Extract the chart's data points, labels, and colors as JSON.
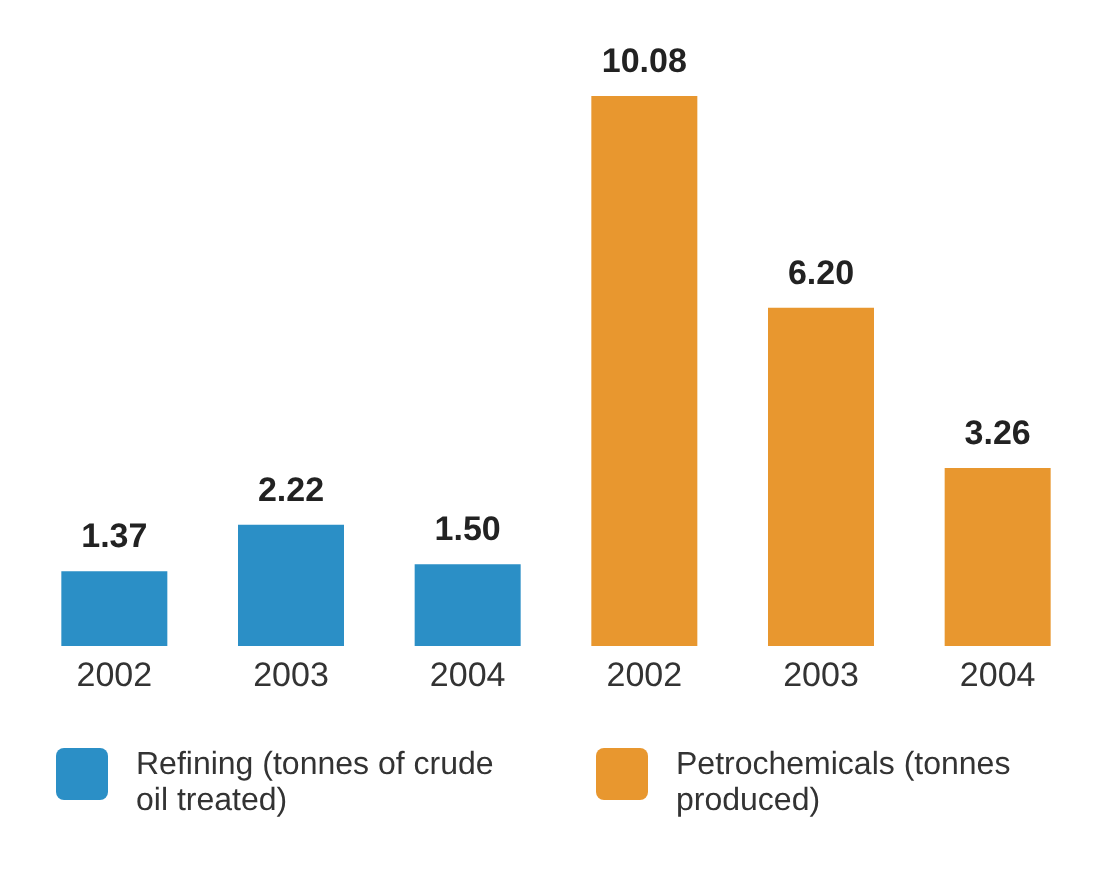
{
  "chart_data": {
    "type": "bar",
    "categories": [
      "2002",
      "2003",
      "2004",
      "2002",
      "2003",
      "2004"
    ],
    "series": [
      {
        "name": "Refining (tonnes of crude oil treated)",
        "color": "#2b8fc6",
        "values": [
          1.37,
          2.22,
          1.5,
          null,
          null,
          null
        ],
        "value_labels": [
          "1.37",
          "2.22",
          "1.50",
          null,
          null,
          null
        ]
      },
      {
        "name": "Petrochemicals (tonnes produced)",
        "color": "#e8972f",
        "values": [
          null,
          null,
          null,
          10.08,
          6.2,
          3.26
        ],
        "value_labels": [
          null,
          null,
          null,
          "10.08",
          "6.20",
          "3.26"
        ]
      }
    ],
    "legend": "bottom"
  }
}
